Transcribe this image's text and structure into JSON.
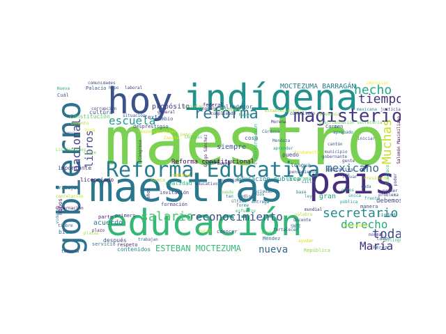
{
  "words": [
    {
      "text": "maestro",
      "color": "#7ad151"
    },
    {
      "text": "maestras",
      "color": "#2a788e"
    },
    {
      "text": "educación",
      "color": "#35b779"
    },
    {
      "text": "país",
      "color": "#46307e"
    },
    {
      "text": "hoy",
      "color": "#3b528b"
    },
    {
      "text": "indígena",
      "color": "#21918c"
    },
    {
      "text": "gobierno",
      "color": "#2c728e"
    },
    {
      "text": "Reforma Educativa",
      "color": "#287d8e"
    },
    {
      "text": "magisterio",
      "color": "#443983"
    },
    {
      "text": "reforma",
      "color": "#2a788e"
    },
    {
      "text": "hecho",
      "color": "#22a884"
    },
    {
      "text": "tiempo",
      "color": "#46337e"
    },
    {
      "text": "escuela",
      "color": "#1f9e89"
    },
    {
      "text": "Muchas",
      "color": "#c8e020"
    },
    {
      "text": "nacional",
      "color": "#414487"
    },
    {
      "text": "libros",
      "color": "#3e4989"
    },
    {
      "text": "mexicano",
      "color": "#2d708e"
    },
    {
      "text": "reconocimiento",
      "color": "#3b528b"
    },
    {
      "text": "secretario",
      "color": "#238a8d"
    },
    {
      "text": "salario",
      "color": "#4ac16d"
    },
    {
      "text": "derecho",
      "color": "#22a884"
    },
    {
      "text": "toda",
      "color": "#3e4989"
    },
    {
      "text": "nueva",
      "color": "#31688e"
    },
    {
      "text": "María",
      "color": "#472d7b"
    },
    {
      "text": "ESTEBAN MOCTEZUMA",
      "color": "#35b779"
    },
    {
      "text": "MOCTEZUMA BARRAGÁN",
      "color": "#287c8e"
    },
    {
      "text": "propósito",
      "color": "#443a83"
    },
    {
      "text": "siempre",
      "color": "#39568c"
    },
    {
      "text": "Reforma constitucional",
      "color": "#440154"
    },
    {
      "text": "educación pública",
      "color": "#25858e"
    },
    {
      "text": "texto",
      "color": "#3b528b"
    },
    {
      "text": "cosa",
      "color": "#38598c"
    },
    {
      "text": "acuerdo",
      "color": "#2c728e"
    },
    {
      "text": "contenidos",
      "color": "#26828e"
    },
    {
      "text": "licenciado",
      "color": "#471365"
    },
    {
      "text": "realidad",
      "color": "#2fb47c"
    },
    {
      "text": "mañana",
      "color": "#dde318"
    },
    {
      "text": "importante",
      "color": "#46317e"
    },
    {
      "text": "cultura",
      "color": "#3b528b"
    },
    {
      "text": "Constitución",
      "color": "#5ec962"
    },
    {
      "text": "alrededor",
      "color": "#365c8d"
    },
    {
      "text": "puedo",
      "color": "#3f4788"
    },
    {
      "text": "lengua",
      "color": "#31688e"
    },
    {
      "text": "gran",
      "color": "#1fa187"
    },
    {
      "text": "programa",
      "color": "#3bbb75"
    },
    {
      "text": "Educativa",
      "color": "#3f4889"
    },
    {
      "text": "debemos",
      "color": "#3e4a89"
    },
    {
      "text": "República",
      "color": "#90d743"
    },
    {
      "text": "invitación",
      "color": "#443983"
    },
    {
      "text": "niños",
      "color": "#482071"
    },
    {
      "text": "trabajar",
      "color": "#2e6f8e"
    },
    {
      "text": "parte",
      "color": "#481a6c"
    },
    {
      "text": "bien",
      "color": "#2a768e"
    },
    {
      "text": "después",
      "color": "#3e4c8a"
    },
    {
      "text": "años",
      "color": "#433e85"
    },
    {
      "text": "formación",
      "color": "#3f4788"
    },
    {
      "text": "respeto",
      "color": "#482576"
    },
    {
      "text": "servicio",
      "color": "#297a8e"
    },
    {
      "text": "conocer",
      "color": "#404688"
    },
    {
      "text": "manera",
      "color": "#3e4a89"
    },
    {
      "text": "ciudad",
      "color": "#2e6e8e"
    },
    {
      "text": "labor",
      "color": "#365d8d"
    },
    {
      "text": "Pérez",
      "color": "#31688e"
    },
    {
      "text": "Méndez",
      "color": "#2c718e"
    },
    {
      "text": "primero",
      "color": "#433d84"
    },
    {
      "text": "Gobernación",
      "color": "#440154"
    },
    {
      "text": "tan",
      "color": "#2a788e"
    },
    {
      "text": "medio",
      "color": "#32648e"
    },
    {
      "text": "Carmen",
      "color": "#3d4d8a"
    },
    {
      "text": "Congreso",
      "color": "#453781"
    },
    {
      "text": "millones",
      "color": "#6ece58"
    },
    {
      "text": "nunca",
      "color": "#b5de2b"
    },
    {
      "text": "general",
      "color": "#472c7a"
    },
    {
      "text": "cambio",
      "color": "#365d8d"
    },
    {
      "text": "federal",
      "color": "#471164"
    },
    {
      "text": "superior",
      "color": "#3e4989"
    },
    {
      "text": "nombre",
      "color": "#482475"
    },
    {
      "text": "Cuál",
      "color": "#38598c"
    },
    {
      "text": "Palacio",
      "color": "#3b528b"
    },
    {
      "text": "Nueva",
      "color": "#25ab82"
    },
    {
      "text": "todavía",
      "color": "#472f7d"
    },
    {
      "text": "timbre",
      "color": "#34618d"
    },
    {
      "text": "vida",
      "color": "#2a788e"
    },
    {
      "text": "poder",
      "color": "#404588"
    },
    {
      "text": "primer",
      "color": "#3e4989"
    },
    {
      "text": "normal",
      "color": "#482677"
    },
    {
      "text": "bilingüe",
      "color": "#35b779"
    },
    {
      "text": "problema",
      "color": "#404688"
    },
    {
      "text": "llevar",
      "color": "#3d4e8a"
    },
    {
      "text": "educativo",
      "color": "#453882"
    },
    {
      "text": "pesos",
      "color": "#c2df23"
    },
    {
      "text": "sociedad",
      "color": "#2e6e8e"
    },
    {
      "text": "hipo",
      "color": "#39568c"
    },
    {
      "text": "laboral",
      "color": "#46327e"
    },
    {
      "text": "comunidades",
      "color": "#3f4788"
    },
    {
      "text": "transformación",
      "color": "#31b57b"
    },
    {
      "text": "Salomón Maximiliano",
      "color": "#440154"
    },
    {
      "text": "cumpliendo",
      "color": "#482878"
    },
    {
      "text": "establecimiento",
      "color": "#a2da37"
    },
    {
      "text": "consultado",
      "color": "#3d4d8a"
    },
    {
      "text": "justicia",
      "color": "#404688"
    },
    {
      "text": "impresión",
      "color": "#fde725"
    },
    {
      "text": "mexicana",
      "color": "#24878e"
    },
    {
      "text": "iniciar",
      "color": "#3f4788"
    },
    {
      "text": "aprobado",
      "color": "#2f6b8e"
    },
    {
      "text": "Dios",
      "color": "#2d708e"
    },
    {
      "text": "entrega",
      "color": "#31688e"
    },
    {
      "text": "palabra",
      "color": "#b5de2b"
    },
    {
      "text": "docente",
      "color": "#3e4989"
    },
    {
      "text": "ley",
      "color": "#1e9b8a"
    },
    {
      "text": "SNTE",
      "color": "#2d708e"
    },
    {
      "text": "esfuerzo",
      "color": "#32b67a"
    },
    {
      "text": "forme",
      "color": "#25848e"
    },
    {
      "text": "fortalecer",
      "color": "#3c4f8a"
    },
    {
      "text": "desprestigio",
      "color": "#3e4989"
    },
    {
      "text": "responsabilidad",
      "color": "#d2e21b"
    },
    {
      "text": "Gilgo Sánchez",
      "color": "#482374"
    },
    {
      "text": "situación",
      "color": "#3b528b"
    },
    {
      "text": "escuelas",
      "color": "#75d054"
    },
    {
      "text": "Zapata",
      "color": "#e5e419"
    },
    {
      "text": "momento",
      "color": "#c0df25"
    },
    {
      "text": "corrupción",
      "color": "#46337e"
    },
    {
      "text": "ceremonia",
      "color": "#7fd34e"
    },
    {
      "text": "Nuevo",
      "color": "#29af7f"
    },
    {
      "text": "Chiapas",
      "color": "#5cc863"
    },
    {
      "text": "discriminación secretaría",
      "color": "#6ccd5a"
    },
    {
      "text": "aprender",
      "color": "#1f9f88"
    },
    {
      "text": "plazas",
      "color": "#addc30"
    },
    {
      "text": "último",
      "color": "#2e6f8e"
    },
    {
      "text": "gente",
      "color": "#3f4788"
    },
    {
      "text": "trabajan",
      "color": "#38598c"
    },
    {
      "text": "puede",
      "color": "#73d056"
    },
    {
      "text": "cada",
      "color": "#2d708e"
    },
    {
      "text": "ayudar",
      "color": "#d8e219"
    },
    {
      "text": "presidente",
      "color": "#e2e418"
    },
    {
      "text": "sierra",
      "color": "#5ac864"
    },
    {
      "text": "fundamento",
      "color": "#f1e51d"
    },
    {
      "text": "ciclo",
      "color": "#2d708e"
    },
    {
      "text": "cancelación",
      "color": "#b8de29"
    },
    {
      "text": "cierre",
      "color": "#46307e"
    },
    {
      "text": "Licitaciones",
      "color": "#8bd646"
    },
    {
      "text": "municipio",
      "color": "#3a548c"
    },
    {
      "text": "gobernante",
      "color": "#3d4d8a"
    },
    {
      "text": "pública",
      "color": "#1f968b"
    },
    {
      "text": "pensamiento",
      "color": "#3c508b"
    },
    {
      "text": "frente",
      "color": "#20a386"
    },
    {
      "text": "base",
      "color": "#2b748e"
    },
    {
      "text": "Tlaxiaco",
      "color": "#35b779"
    },
    {
      "text": "Buena",
      "color": "#482475"
    },
    {
      "text": "clase",
      "color": "#7ad151"
    },
    {
      "text": "hora",
      "color": "#fde725"
    },
    {
      "text": "otros",
      "color": "#1fa088"
    },
    {
      "text": "Mendoza",
      "color": "#2f6c8e"
    },
    {
      "text": "mundial",
      "color": "#482173"
    },
    {
      "text": "Morena",
      "color": "#46327e"
    },
    {
      "text": "Presidente",
      "color": "#b5de2b"
    },
    {
      "text": "Córdova",
      "color": "#2c718e"
    },
    {
      "text": "rural",
      "color": "#d5e21a"
    },
    {
      "text": "cantón",
      "color": "#3c4f8a"
    },
    {
      "text": "plazo",
      "color": "#482273"
    },
    {
      "text": "única",
      "color": "#1e9d89"
    },
    {
      "text": "Nueva",
      "color": "#3a538b"
    }
  ]
}
